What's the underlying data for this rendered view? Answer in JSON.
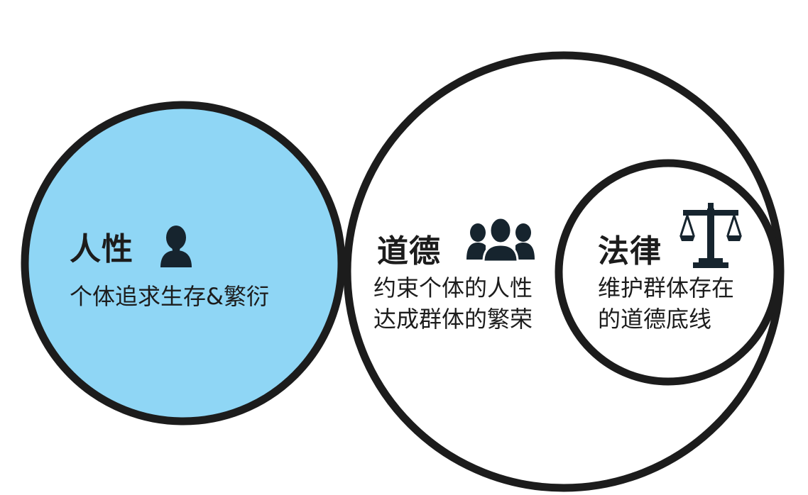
{
  "colors": {
    "human_fill": "#8fd6f5",
    "outline": "#1c1c1c",
    "icon": "#16242e",
    "background": "#ffffff"
  },
  "human_nature": {
    "title": "人性",
    "description": "个体追求生存&繁衍",
    "icon": "person-icon"
  },
  "morality": {
    "title": "道德",
    "description_lines": [
      "约束个体的人性",
      "达成群体的繁荣"
    ],
    "icon": "group-icon"
  },
  "law": {
    "title": "法律",
    "description_lines": [
      "维护群体存在",
      "的道德底线"
    ],
    "icon": "scales-icon"
  }
}
